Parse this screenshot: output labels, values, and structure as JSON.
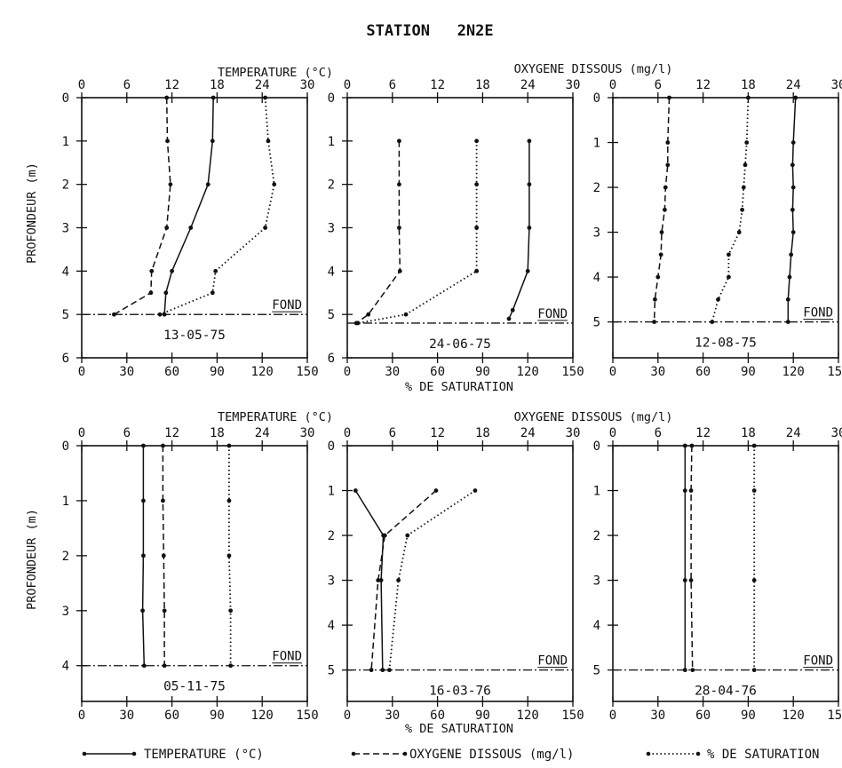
{
  "figure_title": "STATION   2N2E",
  "top_axis_labels": {
    "temperature": "TEMPERATURE (°C)",
    "oxygen": "OXYGENE DISSOUS (mg/l)"
  },
  "bottom_axis_label": "% DE SATURATION",
  "y_axis_label": "PROFONDEUR (m)",
  "bottom_label": "FOND",
  "legend": [
    {
      "name": "TEMPERATURE (°C)",
      "style": "solid"
    },
    {
      "name": "OXYGENE DISSOUS (mg/l)",
      "style": "dashed"
    },
    {
      "name": "% DE SATURATION",
      "style": "dotted"
    }
  ],
  "colors": {
    "ink": "#111111",
    "background": "#ffffff"
  },
  "chart_data": [
    {
      "type": "line",
      "title": "13-05-75",
      "top_ticks": [
        "0",
        "6",
        "12",
        "18",
        "24",
        "30"
      ],
      "top_range": [
        0,
        30
      ],
      "bottom_ticks": [
        "0",
        "30",
        "60",
        "90",
        "120",
        "150"
      ],
      "bottom_range": [
        0,
        150
      ],
      "depth_ticks": [
        "0",
        "1",
        "2",
        "3",
        "4",
        "5",
        "6"
      ],
      "depth_range": [
        0,
        6
      ],
      "bottom_depth": 5,
      "series": [
        {
          "style": "solid",
          "values": [
            [
              17.5,
              0
            ],
            [
              17.4,
              1
            ],
            [
              16.8,
              2
            ],
            [
              14.5,
              3
            ],
            [
              12.0,
              4
            ],
            [
              11.2,
              4.5
            ],
            [
              11.0,
              5
            ]
          ]
        },
        {
          "style": "dashed",
          "values": [
            [
              11.3,
              0
            ],
            [
              11.4,
              1
            ],
            [
              11.8,
              2
            ],
            [
              11.3,
              3
            ],
            [
              9.3,
              4
            ],
            [
              9.2,
              4.5
            ],
            [
              4.3,
              5
            ]
          ]
        },
        {
          "style": "dotted",
          "values": [
            [
              122,
              0
            ],
            [
              124,
              1
            ],
            [
              128,
              2
            ],
            [
              122,
              3
            ],
            [
              89,
              4
            ],
            [
              87,
              4.5
            ],
            [
              52,
              5
            ]
          ]
        }
      ]
    },
    {
      "type": "line",
      "title": "24-06-75",
      "top_ticks": [
        "0",
        "6",
        "12",
        "18",
        "24",
        "30"
      ],
      "top_range": [
        0,
        30
      ],
      "bottom_ticks": [
        "0",
        "30",
        "60",
        "90",
        "120",
        "150"
      ],
      "bottom_range": [
        0,
        150
      ],
      "depth_ticks": [
        "0",
        "1",
        "2",
        "3",
        "4",
        "5",
        "6"
      ],
      "depth_range": [
        0,
        6
      ],
      "bottom_depth": 5.2,
      "series": [
        {
          "style": "solid",
          "values": [
            [
              24.2,
              1
            ],
            [
              24.2,
              2
            ],
            [
              24.2,
              3
            ],
            [
              24.0,
              4
            ],
            [
              22.0,
              4.9
            ],
            [
              21.5,
              5.1
            ]
          ]
        },
        {
          "style": "dashed",
          "values": [
            [
              6.9,
              1
            ],
            [
              6.9,
              2
            ],
            [
              6.9,
              3
            ],
            [
              7.0,
              4
            ],
            [
              2.8,
              5.0
            ],
            [
              1.2,
              5.2
            ]
          ]
        },
        {
          "style": "dotted",
          "values": [
            [
              86,
              1
            ],
            [
              86,
              2
            ],
            [
              86,
              3
            ],
            [
              86,
              4
            ],
            [
              39,
              5
            ],
            [
              7,
              5.2
            ]
          ]
        }
      ]
    },
    {
      "type": "line",
      "title": "12-08-75",
      "top_ticks": [
        "0",
        "6",
        "12",
        "18",
        "24",
        "30"
      ],
      "top_range": [
        0,
        30
      ],
      "bottom_ticks": [
        "0",
        "30",
        "60",
        "90",
        "120",
        "150"
      ],
      "bottom_range": [
        0,
        150
      ],
      "depth_ticks": [
        "0",
        "1",
        "2",
        "3",
        "4",
        "5"
      ],
      "depth_range": [
        0,
        5.8
      ],
      "bottom_depth": 5,
      "series": [
        {
          "style": "solid",
          "values": [
            [
              24.3,
              0
            ],
            [
              24.0,
              1
            ],
            [
              23.9,
              1.5
            ],
            [
              24.0,
              2
            ],
            [
              23.9,
              2.5
            ],
            [
              24.0,
              3
            ],
            [
              23.7,
              3.5
            ],
            [
              23.5,
              4
            ],
            [
              23.3,
              4.5
            ],
            [
              23.3,
              5
            ]
          ]
        },
        {
          "style": "dashed",
          "values": [
            [
              7.5,
              0
            ],
            [
              7.3,
              1
            ],
            [
              7.3,
              1.5
            ],
            [
              7.0,
              2
            ],
            [
              6.9,
              2.5
            ],
            [
              6.5,
              3
            ],
            [
              6.4,
              3.5
            ],
            [
              6.0,
              4
            ],
            [
              5.6,
              4.5
            ],
            [
              5.5,
              5
            ]
          ]
        },
        {
          "style": "dotted",
          "values": [
            [
              90,
              0
            ],
            [
              89,
              1
            ],
            [
              88,
              1.5
            ],
            [
              87,
              2
            ],
            [
              86,
              2.5
            ],
            [
              84,
              3
            ],
            [
              77,
              3.5
            ],
            [
              77,
              4
            ],
            [
              70,
              4.5
            ],
            [
              66,
              5
            ]
          ]
        }
      ]
    },
    {
      "type": "line",
      "title": "05-11-75",
      "top_ticks": [
        "0",
        "6",
        "12",
        "18",
        "24",
        "30"
      ],
      "top_range": [
        0,
        30
      ],
      "bottom_ticks": [
        "0",
        "30",
        "60",
        "90",
        "120",
        "150"
      ],
      "bottom_range": [
        0,
        150
      ],
      "depth_ticks": [
        "0",
        "1",
        "2",
        "3",
        "4"
      ],
      "depth_range": [
        0,
        4.65
      ],
      "bottom_depth": 4,
      "series": [
        {
          "style": "solid",
          "values": [
            [
              8.2,
              0
            ],
            [
              8.2,
              1
            ],
            [
              8.2,
              2
            ],
            [
              8.1,
              3
            ],
            [
              8.3,
              4
            ]
          ]
        },
        {
          "style": "dashed",
          "values": [
            [
              10.8,
              0
            ],
            [
              10.8,
              1
            ],
            [
              10.9,
              2
            ],
            [
              11.0,
              3
            ],
            [
              11.0,
              4
            ]
          ]
        },
        {
          "style": "dotted",
          "values": [
            [
              98,
              0
            ],
            [
              98,
              1
            ],
            [
              98,
              2
            ],
            [
              99,
              3
            ],
            [
              99,
              4
            ]
          ]
        }
      ]
    },
    {
      "type": "line",
      "title": "16-03-76",
      "top_ticks": [
        "0",
        "6",
        "12",
        "18",
        "24",
        "30"
      ],
      "top_range": [
        0,
        30
      ],
      "bottom_ticks": [
        "0",
        "30",
        "60",
        "90",
        "120",
        "150"
      ],
      "bottom_range": [
        0,
        150
      ],
      "depth_ticks": [
        "0",
        "1",
        "2",
        "3",
        "4",
        "5"
      ],
      "depth_range": [
        0,
        5.7
      ],
      "bottom_depth": 5,
      "series": [
        {
          "style": "solid",
          "values": [
            [
              1.1,
              1
            ],
            [
              4.8,
              2
            ],
            [
              4.5,
              3
            ],
            [
              4.7,
              5
            ]
          ]
        },
        {
          "style": "dashed",
          "values": [
            [
              11.8,
              1
            ],
            [
              5.0,
              2
            ],
            [
              4.1,
              3
            ],
            [
              3.2,
              5
            ]
          ]
        },
        {
          "style": "dotted",
          "values": [
            [
              85,
              1
            ],
            [
              40,
              2
            ],
            [
              34,
              3
            ],
            [
              28,
              5
            ]
          ]
        }
      ]
    },
    {
      "type": "line",
      "title": "28-04-76",
      "top_ticks": [
        "0",
        "6",
        "12",
        "18",
        "24",
        "30"
      ],
      "top_range": [
        0,
        30
      ],
      "bottom_ticks": [
        "0",
        "30",
        "60",
        "90",
        "120",
        "150"
      ],
      "bottom_range": [
        0,
        150
      ],
      "depth_ticks": [
        "0",
        "1",
        "2",
        "3",
        "4",
        "5"
      ],
      "depth_range": [
        0,
        5.7
      ],
      "bottom_depth": 5,
      "series": [
        {
          "style": "solid",
          "values": [
            [
              9.6,
              0
            ],
            [
              9.6,
              1
            ],
            [
              9.6,
              3
            ],
            [
              9.6,
              5
            ]
          ]
        },
        {
          "style": "dashed",
          "values": [
            [
              10.5,
              0
            ],
            [
              10.4,
              1
            ],
            [
              10.4,
              3
            ],
            [
              10.6,
              5
            ]
          ]
        },
        {
          "style": "dotted",
          "values": [
            [
              94,
              0
            ],
            [
              94,
              1
            ],
            [
              94,
              3
            ],
            [
              94,
              5
            ]
          ]
        }
      ]
    }
  ]
}
